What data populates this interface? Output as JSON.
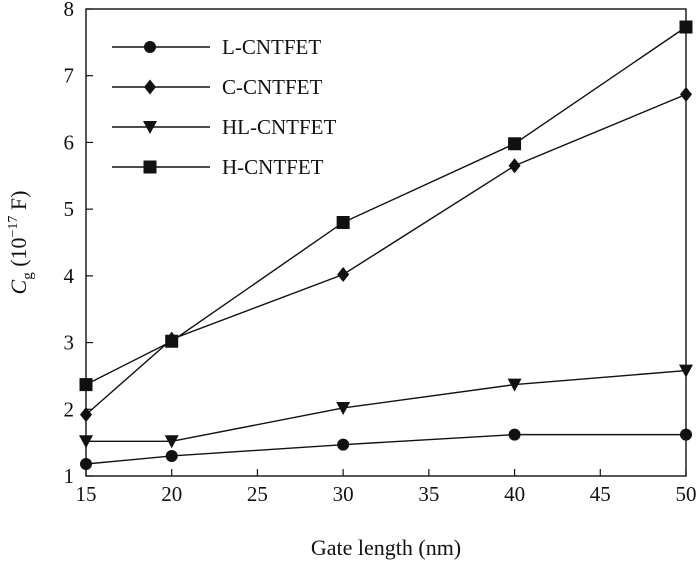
{
  "chart_data": {
    "type": "line",
    "xlabel": "Gate length (nm)",
    "ylabel": "C_g (10^-17 F)",
    "ylabel_parts": {
      "symbol": "C",
      "subscript": "g",
      "unit_open": " (10",
      "exponent": "−17",
      "unit_close": " F)"
    },
    "xlim": [
      15,
      50
    ],
    "ylim": [
      1,
      8
    ],
    "x_ticks": [
      15,
      20,
      25,
      30,
      35,
      40,
      45,
      50
    ],
    "y_ticks": [
      1,
      2,
      3,
      4,
      5,
      6,
      7,
      8
    ],
    "grid": false,
    "legend_position": "top-left",
    "x": [
      15,
      20,
      30,
      40,
      50
    ],
    "series": [
      {
        "name": "L-CNTFET",
        "marker": "circle",
        "values": [
          1.18,
          1.3,
          1.47,
          1.62,
          1.62
        ]
      },
      {
        "name": "C-CNTFET",
        "marker": "diamond",
        "values": [
          1.92,
          3.05,
          4.02,
          5.65,
          6.72
        ]
      },
      {
        "name": "HL-CNTFET",
        "marker": "triangle-down",
        "values": [
          1.52,
          1.52,
          2.02,
          2.37,
          2.58
        ]
      },
      {
        "name": "H-CNTFET",
        "marker": "square",
        "values": [
          2.37,
          3.02,
          4.8,
          5.98,
          7.73
        ]
      }
    ],
    "colors": {
      "line": "#111111",
      "marker": "#111111"
    }
  }
}
